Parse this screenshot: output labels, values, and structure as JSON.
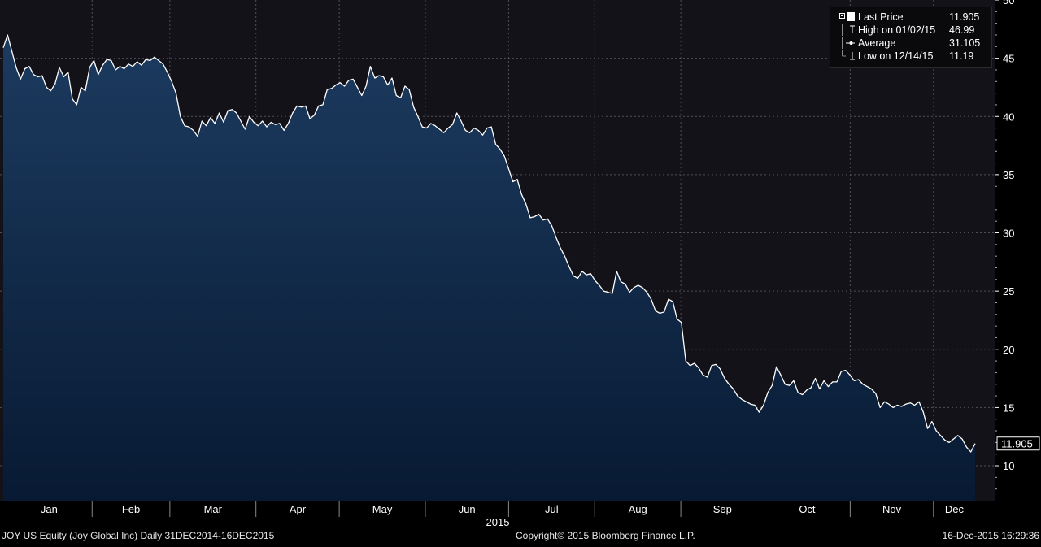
{
  "chart_data": {
    "type": "area",
    "y_axis_side": "right",
    "ylim": [
      7,
      50
    ],
    "y_ticks": [
      10,
      15,
      20,
      25,
      30,
      35,
      40,
      45,
      50
    ],
    "x_tick_labels": [
      "Jan",
      "Feb",
      "Mar",
      "Apr",
      "May",
      "Jun",
      "Jul",
      "Aug",
      "Sep",
      "Oct",
      "Nov",
      "Dec"
    ],
    "x_year_label": "2015",
    "last_value_label": "11.905",
    "grid": true,
    "legend_position": "top-right",
    "colors": {
      "line": "#ffffff",
      "fill_top": "#1c3b60",
      "fill_bottom": "#081a33",
      "background": "#131218",
      "grid": "#6a6a6a"
    },
    "series": [
      {
        "x_start": "2014-12-31",
        "x_end": "2015-12-16",
        "values": [
          45.9,
          46.99,
          45.6,
          44.2,
          43.2,
          44.1,
          44.3,
          43.6,
          43.4,
          43.5,
          42.5,
          42.2,
          42.8,
          44.2,
          43.4,
          43.8,
          41.5,
          41,
          42.5,
          42.2,
          44.2,
          44.8,
          43.6,
          44.4,
          44.9,
          44.8,
          44,
          44.3,
          44.1,
          44.5,
          44.3,
          44.7,
          44.4,
          44.9,
          44.8,
          45.1,
          44.8,
          44.5,
          43.8,
          43,
          42,
          40,
          39.2,
          39.1,
          38.8,
          38.3,
          39.6,
          39.2,
          39.9,
          39.4,
          40.3,
          39.5,
          40.5,
          40.6,
          40.3,
          39.6,
          38.9,
          40,
          39.5,
          39.2,
          39.6,
          39.1,
          39.5,
          39.3,
          39.4,
          38.8,
          39.4,
          40.3,
          40.9,
          40.8,
          40.9,
          39.8,
          40.1,
          40.9,
          41,
          42.3,
          42.4,
          42.7,
          42.9,
          42.6,
          43.1,
          43.2,
          42.5,
          41.8,
          42.6,
          44.3,
          43.3,
          43.5,
          43.4,
          42.7,
          43.3,
          41.8,
          41.6,
          42.6,
          42.3,
          40.8,
          40,
          39.1,
          39,
          39.4,
          39.2,
          38.9,
          38.6,
          39,
          39.3,
          40.3,
          39.6,
          38.8,
          38.6,
          39,
          38.8,
          38.4,
          39,
          39.1,
          37.6,
          37.2,
          36.6,
          35.5,
          34.4,
          34.6,
          33.3,
          32.5,
          31.3,
          31.4,
          31.6,
          31.1,
          31.2,
          30.6,
          29.6,
          28.7,
          28,
          27.1,
          26.3,
          26.1,
          26.7,
          26.4,
          26.5,
          25.9,
          25.5,
          25,
          24.9,
          24.8,
          26.7,
          25.8,
          25.6,
          24.9,
          25.3,
          25.5,
          25.3,
          24.9,
          24.3,
          23.3,
          23.1,
          23.2,
          24.3,
          24.1,
          22.6,
          22.3,
          19,
          18.6,
          18.8,
          18.4,
          17.8,
          17.6,
          18.6,
          18.7,
          18.3,
          17.5,
          17,
          16.6,
          16,
          15.7,
          15.5,
          15.3,
          15.2,
          14.6,
          15.2,
          16.3,
          16.9,
          18.5,
          17.8,
          17,
          16.9,
          17.3,
          16.3,
          16.1,
          16.5,
          16.7,
          17.5,
          16.6,
          17.3,
          16.8,
          17.2,
          17.2,
          18.1,
          18.2,
          17.8,
          17.3,
          17.4,
          17,
          16.8,
          16.6,
          16.2,
          15,
          15.5,
          15.3,
          15,
          15.2,
          15.1,
          15.3,
          15.4,
          15.2,
          15.5,
          14.6,
          13.2,
          13.8,
          13,
          12.6,
          12.2,
          12,
          12.3,
          12.6,
          12.3,
          11.6,
          11.19,
          11.905
        ]
      }
    ]
  },
  "legend": {
    "items": [
      {
        "label": "Last Price",
        "value": "11.905"
      },
      {
        "label": "High on 01/02/15",
        "value": "46.99"
      },
      {
        "label": "Average",
        "value": "31.105"
      },
      {
        "label": "Low on 12/14/15",
        "value": "11.19"
      }
    ]
  },
  "footer": {
    "left": "JOY US Equity (Joy Global Inc)  Daily 31DEC2014-16DEC2015",
    "center": "Copyright© 2015 Bloomberg Finance L.P.",
    "right": "16-Dec-2015 16:29:36"
  }
}
